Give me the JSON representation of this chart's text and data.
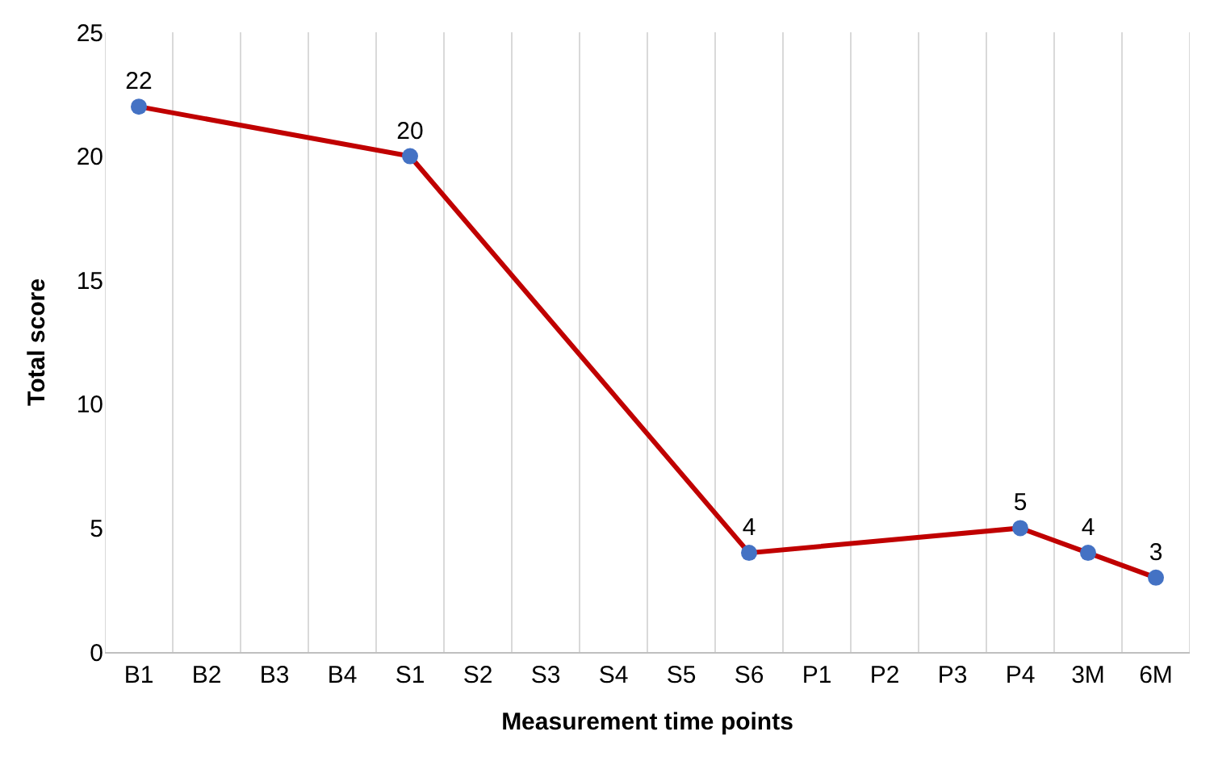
{
  "chart_data": {
    "type": "line",
    "xlabel": "Measurement time points",
    "ylabel": "Total score",
    "categories": [
      "B1",
      "B2",
      "B3",
      "B4",
      "S1",
      "S2",
      "S3",
      "S4",
      "S5",
      "S6",
      "P1",
      "P2",
      "P3",
      "P4",
      "3M",
      "6M"
    ],
    "series": [
      {
        "color": "#c00000",
        "colors": [
          "#4472c4",
          "#4472c4",
          "#4472c4",
          "#4472c4",
          "#4472c4",
          "#4472c4",
          "#4472c4",
          "#4472c4",
          "#4472c4",
          "#4472c4",
          "#4472c4",
          "#4472c4",
          "#4472c4",
          "#4472c4",
          "#4472c4",
          "#4472c4"
        ],
        "values": [
          22,
          null,
          null,
          null,
          20,
          null,
          null,
          null,
          null,
          4,
          null,
          null,
          null,
          5,
          4,
          3
        ]
      }
    ],
    "ylim": [
      0,
      25
    ],
    "yticks": [
      0,
      5,
      10,
      15,
      20,
      25
    ],
    "grid": "x",
    "marker": "circle",
    "line_style": "solid",
    "data_labels": true,
    "legend": false
  }
}
